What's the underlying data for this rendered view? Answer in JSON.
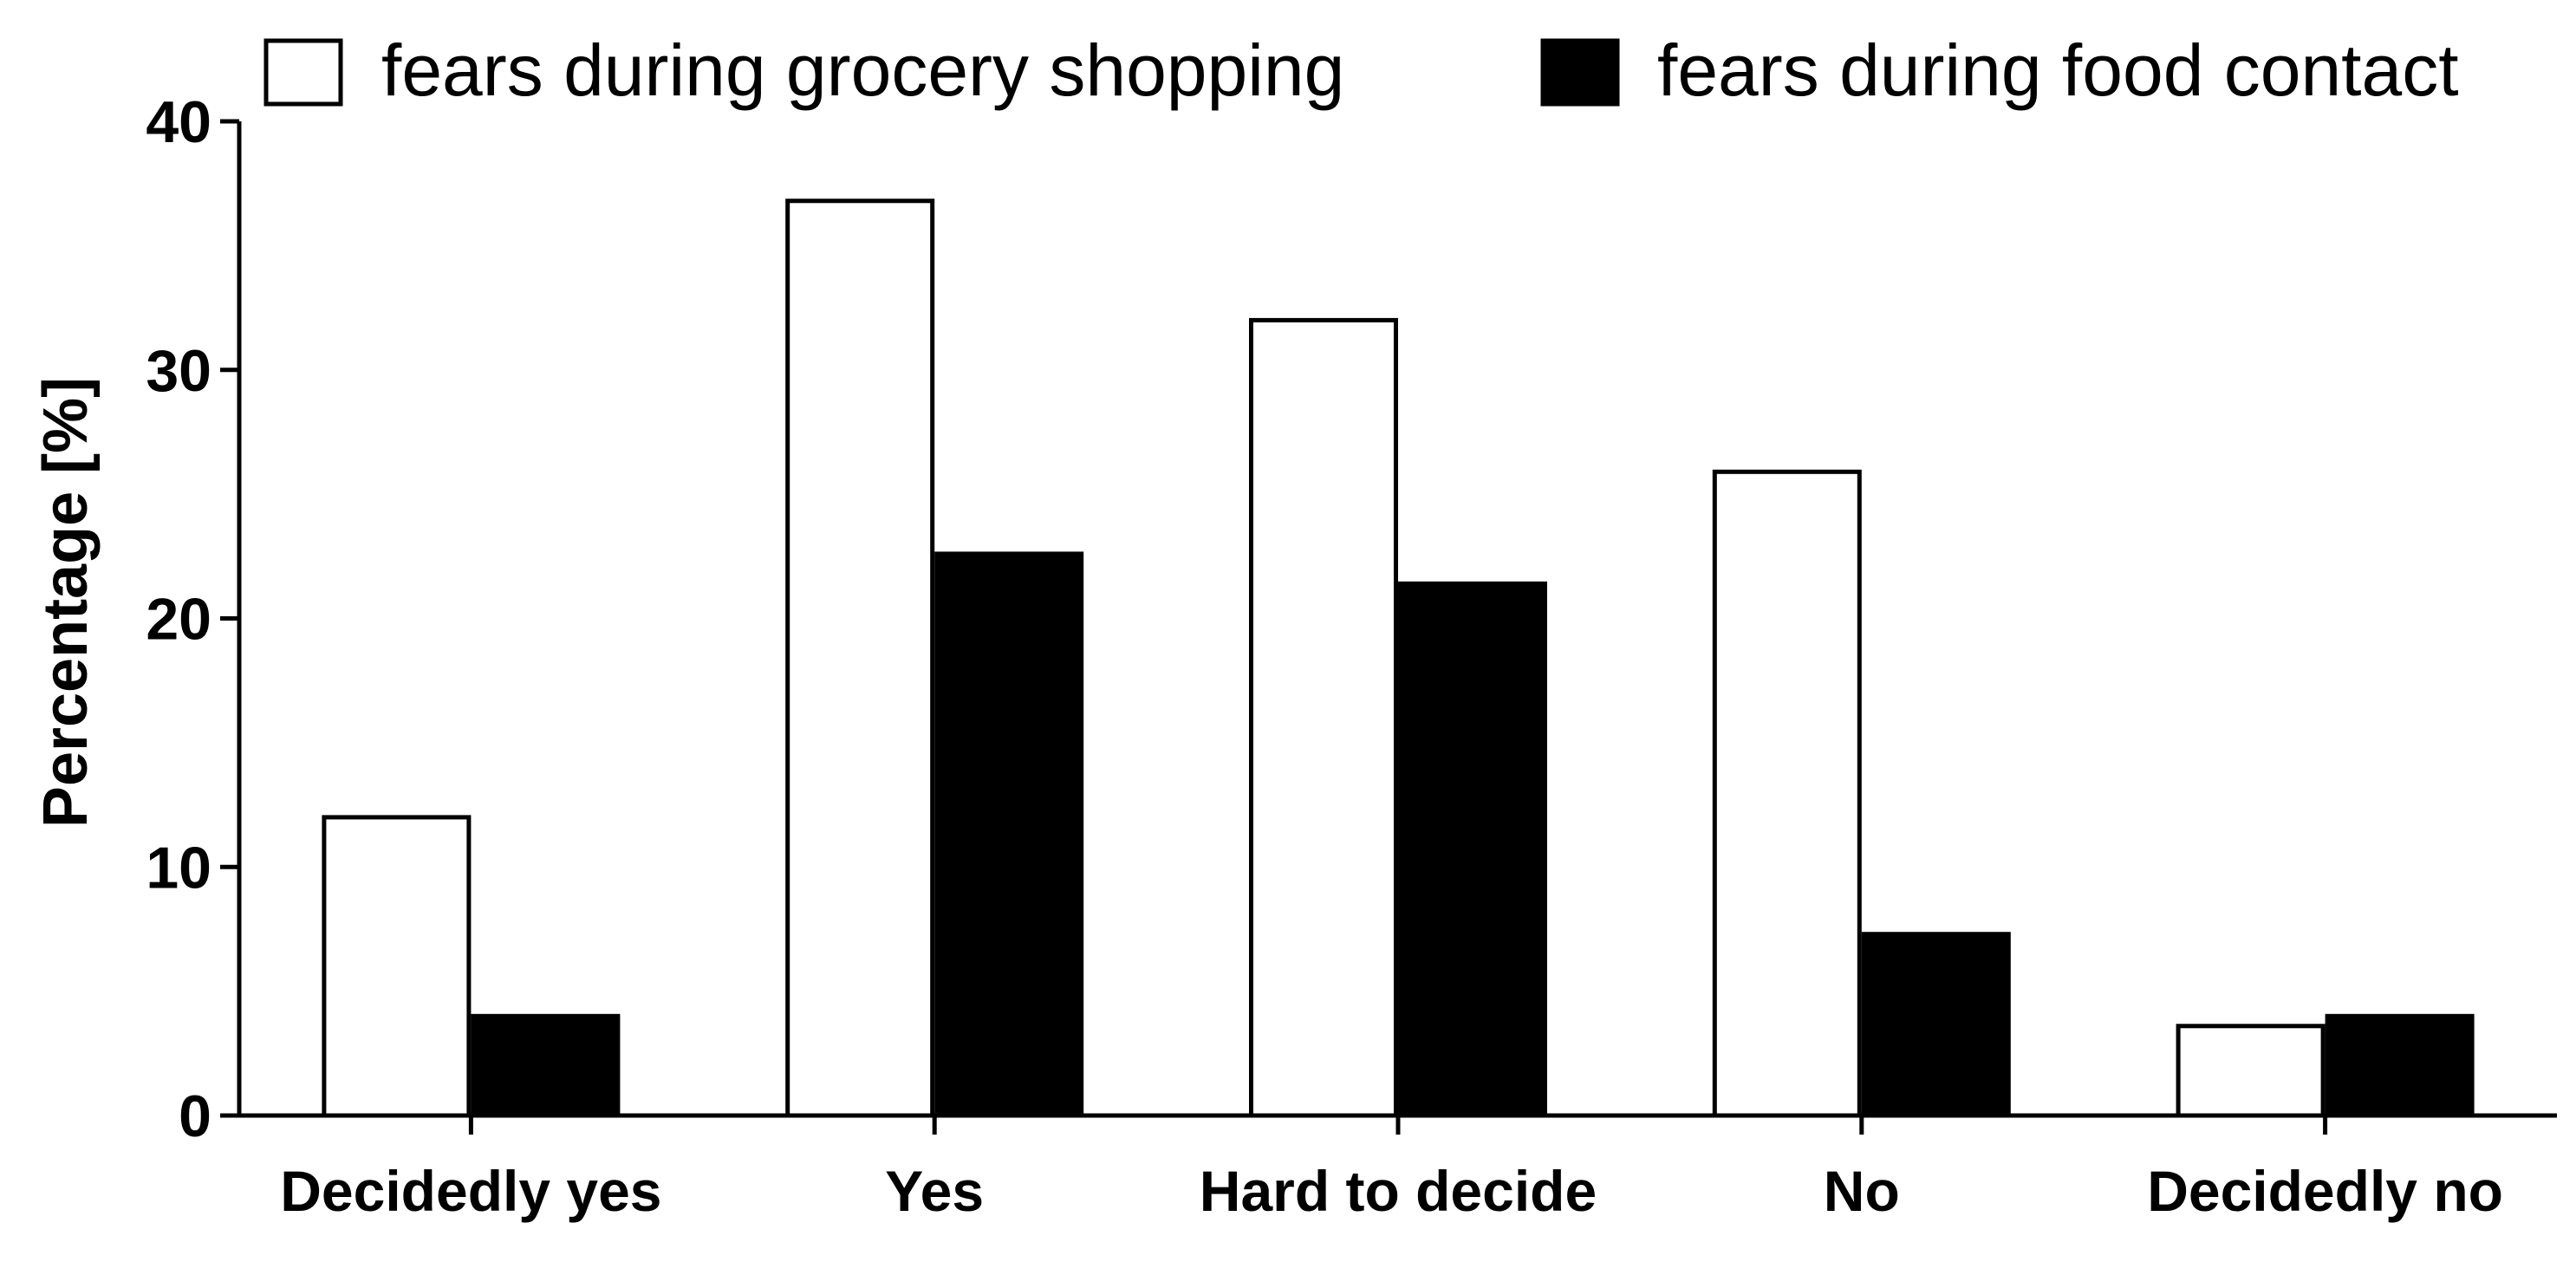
{
  "chart_data": {
    "type": "bar",
    "ylabel": "Percentage [%]",
    "xlabel": "",
    "ylim": [
      0,
      40
    ],
    "yticks": [
      "0",
      "10",
      "20",
      "30",
      "40"
    ],
    "categories": [
      "Decidedly yes",
      "Yes",
      "Hard to decide",
      "No",
      "Decidedly no"
    ],
    "series": [
      {
        "name": "fears during grocery shopping",
        "values": [
          12.0,
          36.8,
          32.0,
          25.9,
          3.6
        ],
        "fill": "#ffffff"
      },
      {
        "name": "fears during food contact",
        "values": [
          4.0,
          22.6,
          21.4,
          7.3,
          4.0
        ],
        "fill": "#000000"
      }
    ],
    "legend_position": "top",
    "grid": false
  }
}
